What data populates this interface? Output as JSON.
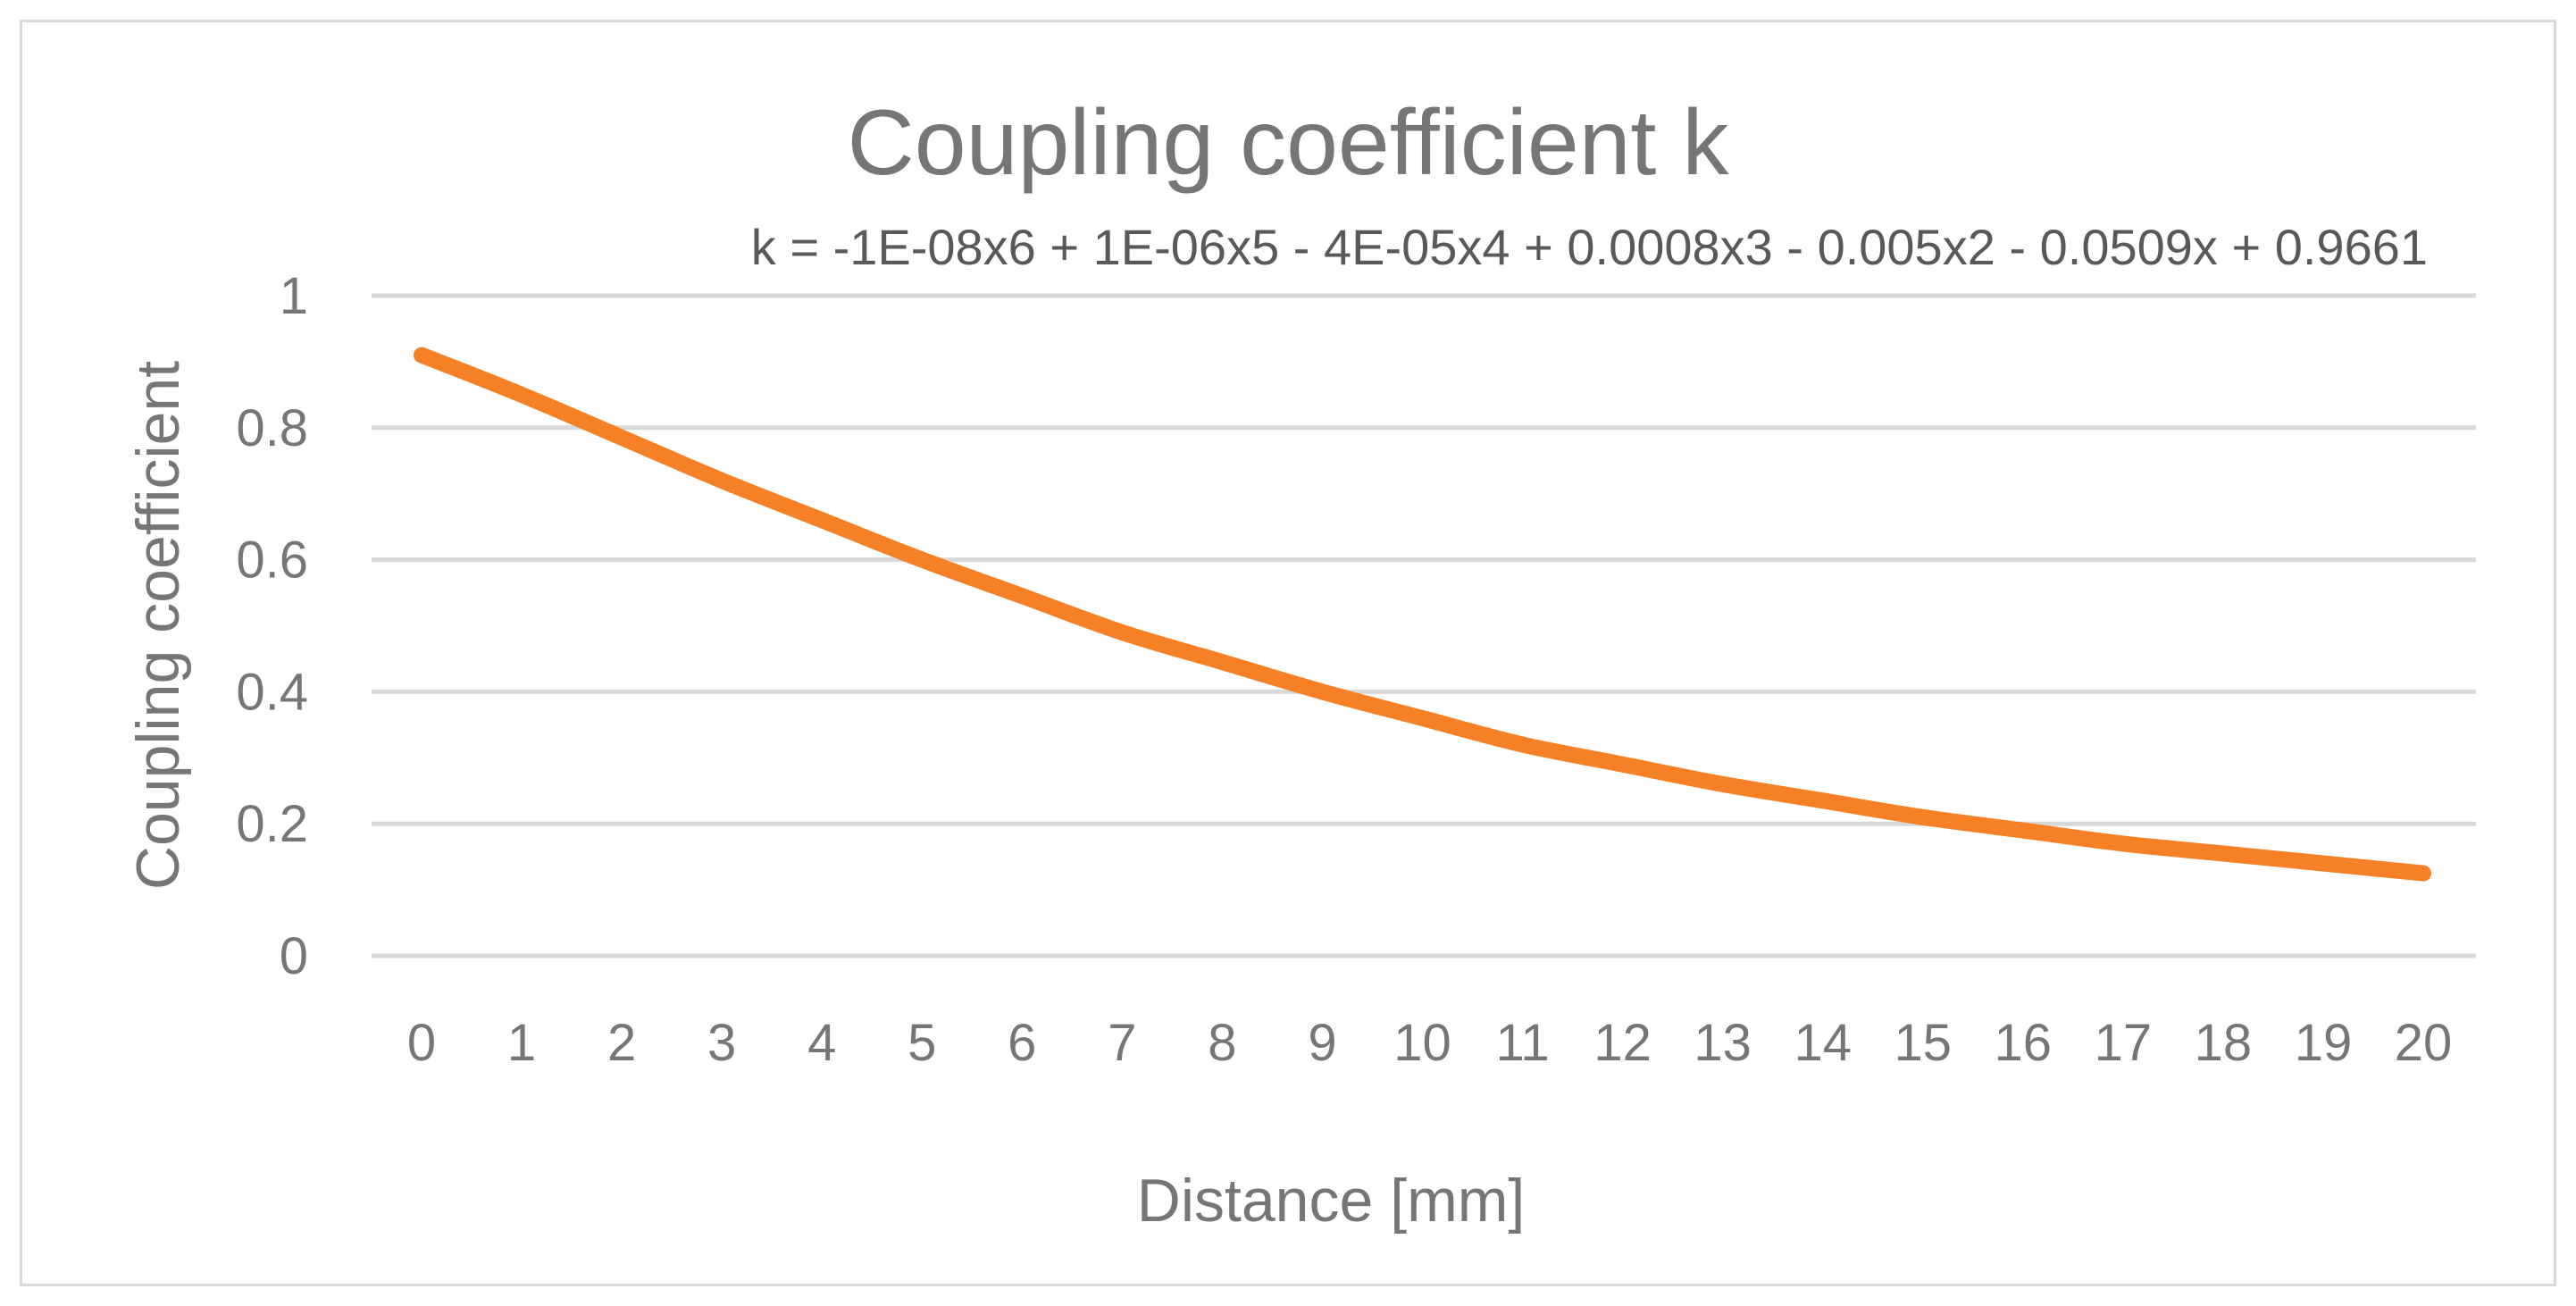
{
  "chart_data": {
    "type": "line",
    "title": "Coupling coefficient k",
    "annotation": "k = -1E-08x6 + 1E-06x5 - 4E-05x4 + 0.0008x3 - 0.005x2 - 0.0509x + 0.9661",
    "xlabel": "Distance [mm]",
    "ylabel": "Coupling coefficient",
    "categories": [
      "0",
      "1",
      "2",
      "3",
      "4",
      "5",
      "6",
      "7",
      "8",
      "9",
      "10",
      "11",
      "12",
      "13",
      "14",
      "15",
      "16",
      "17",
      "18",
      "19",
      "20"
    ],
    "y_ticks": [
      "0",
      "0.2",
      "0.4",
      "0.6",
      "0.8",
      "1"
    ],
    "ylim": [
      0,
      1
    ],
    "grid": true,
    "legend": "none",
    "series": [
      {
        "color": "#f58025",
        "x": [
          0,
          1,
          2,
          3,
          4,
          5,
          6,
          7,
          8,
          9,
          10,
          11,
          12,
          13,
          14,
          15,
          16,
          17,
          18,
          19,
          20
        ],
        "values": [
          0.91,
          0.85,
          0.785,
          0.72,
          0.66,
          0.6,
          0.545,
          0.49,
          0.445,
          0.4,
          0.36,
          0.32,
          0.29,
          0.26,
          0.235,
          0.21,
          0.19,
          0.17,
          0.155,
          0.14,
          0.125
        ]
      }
    ]
  }
}
